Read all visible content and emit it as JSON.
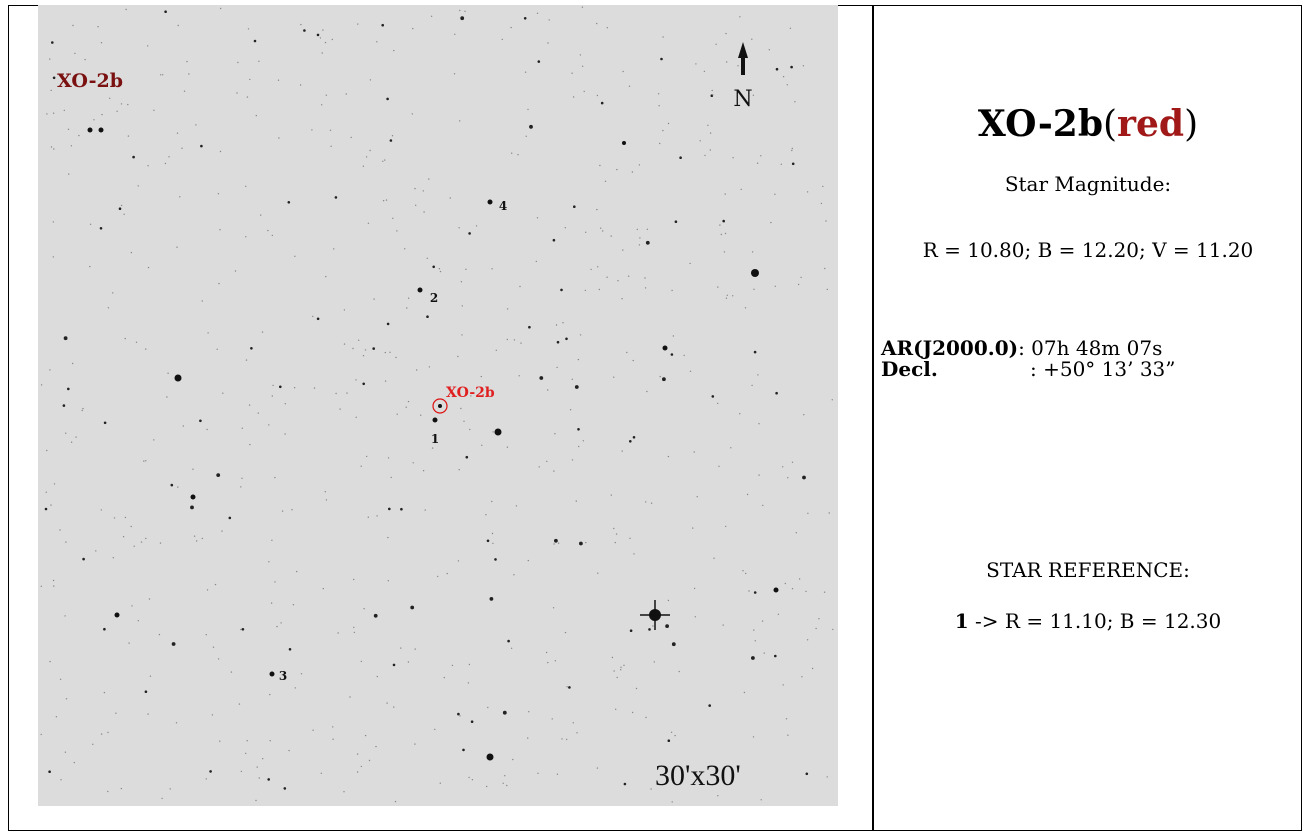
{
  "sky_map": {
    "target_label": "XO-2b",
    "north": "N",
    "ref_labels": [
      "1",
      "2",
      "3",
      "4"
    ],
    "target_marker": "XO-2b",
    "field_size": "30'x30'"
  },
  "info": {
    "title": {
      "name": "XO-2b",
      "open": "(",
      "filter": "red",
      "close": ")"
    },
    "magnitude_heading": "Star Magnitude:",
    "magnitudes": "R = 10.80; B = 12.20; V = 11.20",
    "coords": [
      {
        "label": "AR(J2000.0)",
        "value": ": 07h 48m 07s"
      },
      {
        "label": "Decl.",
        "value": ": +50° 13’ 33”"
      }
    ],
    "reference_heading": "STAR REFERENCE:",
    "reference": {
      "id": "1",
      "value": "-> R = 11.10; B = 12.30"
    }
  }
}
